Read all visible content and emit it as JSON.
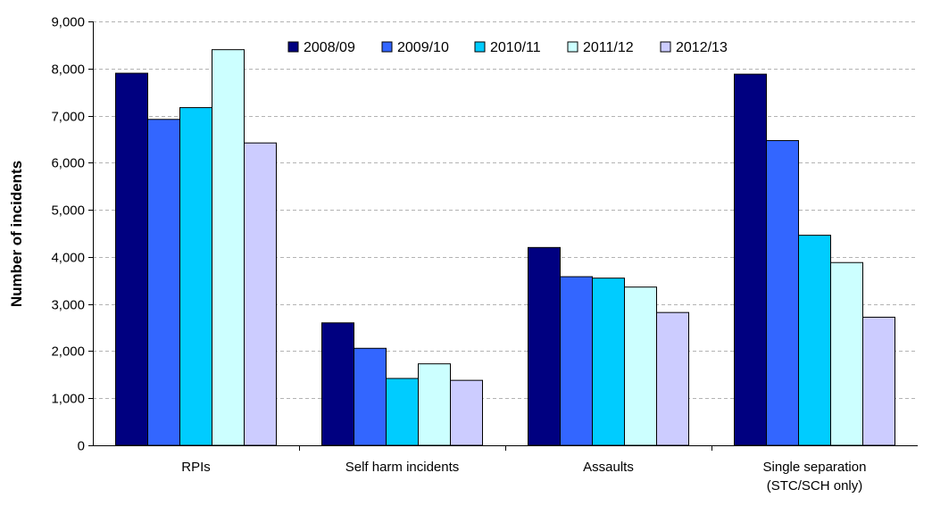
{
  "chart_data": {
    "type": "bar",
    "title": "",
    "xlabel": "",
    "ylabel": "Number of incidents",
    "ylim": [
      0,
      9000
    ],
    "ytick_values": [
      0,
      1000,
      2000,
      3000,
      4000,
      5000,
      6000,
      7000,
      8000,
      9000
    ],
    "ytick_labels": [
      "0",
      "1,000",
      "2,000",
      "3,000",
      "4,000",
      "5,000",
      "6,000",
      "7,000",
      "8,000",
      "9,000"
    ],
    "grid": "horizontal dashed",
    "legend_position": "top",
    "categories": [
      [
        "RPIs"
      ],
      [
        "Self harm incidents"
      ],
      [
        "Assaults"
      ],
      [
        "Single separation",
        "(STC/SCH only)"
      ]
    ],
    "series": [
      {
        "name": "2008/09",
        "color": "#000080",
        "values": [
          7900,
          2600,
          4200,
          7880
        ]
      },
      {
        "name": "2009/10",
        "color": "#3366FF",
        "values": [
          6920,
          2060,
          3580,
          6470
        ]
      },
      {
        "name": "2010/11",
        "color": "#00CCFF",
        "values": [
          7170,
          1420,
          3550,
          4460
        ]
      },
      {
        "name": "2011/12",
        "color": "#CCFFFF",
        "values": [
          8400,
          1730,
          3360,
          3880
        ]
      },
      {
        "name": "2012/13",
        "color": "#CCCCFF",
        "values": [
          6420,
          1380,
          2820,
          2720
        ]
      }
    ]
  }
}
